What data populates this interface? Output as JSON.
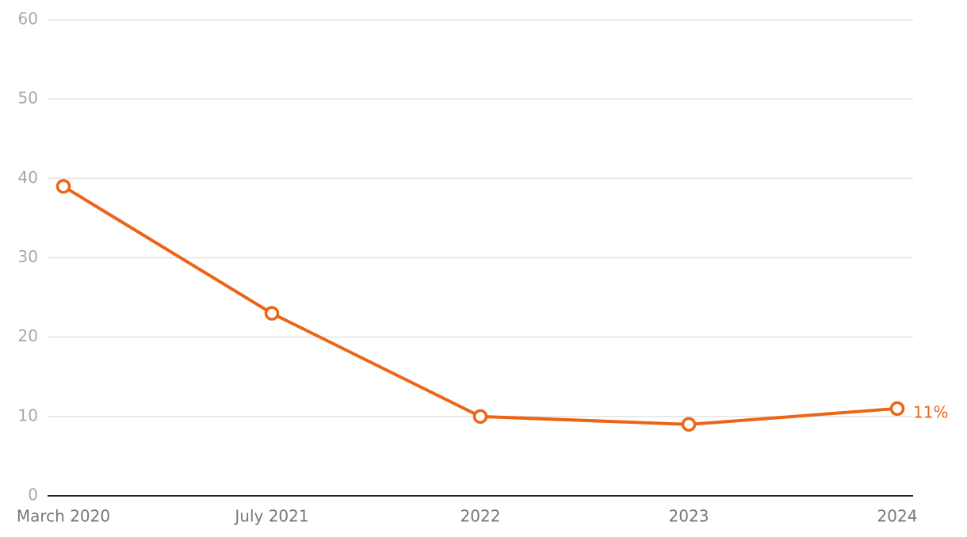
{
  "chart_data": {
    "type": "line",
    "categories": [
      "March 2020",
      "July 2021",
      "2022",
      "2023",
      "2024"
    ],
    "series": [
      {
        "color": "#ec6516",
        "values": [
          39,
          23,
          10,
          9,
          11
        ],
        "value_labels": [
          null,
          null,
          null,
          null,
          "11%"
        ]
      }
    ],
    "ylim": [
      0,
      60
    ],
    "yticks": [
      0,
      10,
      20,
      30,
      40,
      50,
      60
    ],
    "grid": true
  }
}
